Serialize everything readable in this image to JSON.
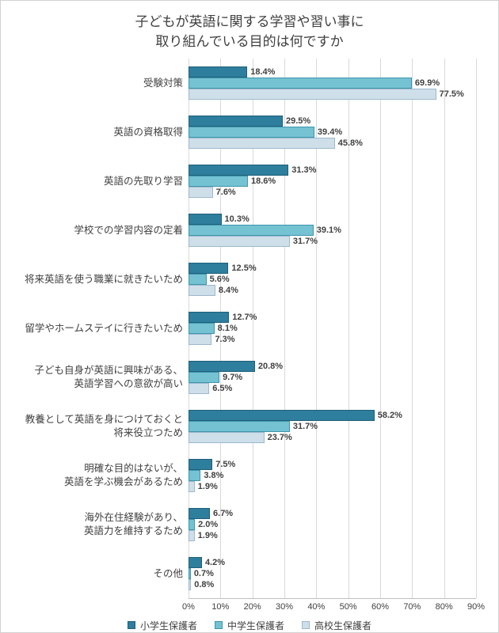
{
  "chart_data": {
    "type": "bar",
    "orientation": "horizontal",
    "title": [
      "子どもが英語に関する学習や習い事に",
      "取り組んでいる目的は何ですか"
    ],
    "categories": [
      [
        "受験対策"
      ],
      [
        "英語の資格取得"
      ],
      [
        "英語の先取り学習"
      ],
      [
        "学校での学習内容の定着"
      ],
      [
        "将来英語を使う職業に就きたいため"
      ],
      [
        "留学やホームステイに行きたいため"
      ],
      [
        "子ども自身が英語に興味がある、",
        "英語学習への意欲が高い"
      ],
      [
        "教養として英語を身につけておくと",
        "将来役立つため"
      ],
      [
        "明確な目的はないが、",
        "英語を学ぶ機会があるため"
      ],
      [
        "海外在住経験があり、",
        "英語力を維持するため"
      ],
      [
        "その他"
      ]
    ],
    "series": [
      {
        "name": "小学生保護者",
        "color": "#2E7E9D",
        "border": "#1F5F7A",
        "values": [
          18.4,
          29.5,
          31.3,
          10.3,
          12.5,
          12.7,
          20.8,
          58.2,
          7.5,
          6.7,
          4.2
        ]
      },
      {
        "name": "中学生保護者",
        "color": "#74C2D2",
        "border": "#3E96AC",
        "values": [
          69.9,
          39.4,
          18.6,
          39.1,
          5.6,
          8.1,
          9.7,
          31.7,
          3.8,
          2.0,
          0.7
        ]
      },
      {
        "name": "高校生保護者",
        "color": "#CEDFEA",
        "border": "#9DB8CC",
        "values": [
          77.5,
          45.8,
          7.6,
          31.7,
          8.4,
          7.3,
          6.5,
          23.7,
          1.9,
          1.9,
          0.8
        ]
      }
    ],
    "x_axis": {
      "min": 0,
      "max": 90,
      "step": 10,
      "tick_labels": [
        "0%",
        "10%",
        "20%",
        "30%",
        "40%",
        "50%",
        "60%",
        "70%",
        "80%",
        "90%"
      ],
      "grid": true
    },
    "legend_position": "bottom",
    "value_suffix": "%"
  }
}
